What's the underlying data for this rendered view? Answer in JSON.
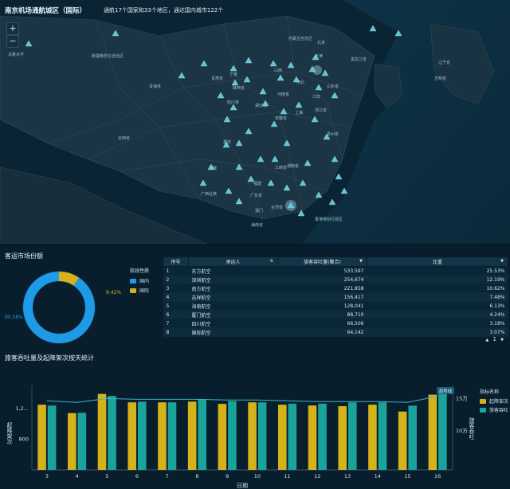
{
  "map": {
    "title": "南京机场通航城区（国际）",
    "summary": "通航17个国家和33个地区，通达国内城市122个",
    "zoom_in": "+",
    "zoom_out": "−",
    "cities": [
      "内蒙古自治区",
      "北京",
      "天津",
      "黑龙江省",
      "乌鲁木齐",
      "新疆维吾尔自治区",
      "甘肃省",
      "宁夏",
      "山西",
      "河北",
      "山东省",
      "青海省",
      "陕西省",
      "四川省",
      "湖北省",
      "河南省",
      "江苏",
      "安徽省",
      "上海",
      "浙江省",
      "湖南省",
      "江西省",
      "贵州省",
      "重庆",
      "西藏",
      "云南省",
      "广西壮族",
      "广东省",
      "福建",
      "台湾省",
      "海南省",
      "澳门",
      "香港特别行政区",
      "辽宁省",
      "吉林省"
    ]
  },
  "market": {
    "title": "客运市场份额",
    "legend_title": "航线性质",
    "legend": [
      {
        "name": "国内",
        "color": "#1e9be6"
      },
      {
        "name": "国际",
        "color": "#d4b21b"
      }
    ],
    "domestic_pct_label": "90.58%",
    "intl_pct_label": "9.42%",
    "domestic_fraction": 0.9058,
    "intl_fraction": 0.0942,
    "table": {
      "headers": [
        "序号",
        "承运人",
        "旅客吞吐量(聚合)",
        "比重"
      ],
      "sort_icon": "⇅",
      "rows": [
        {
          "idx": "1",
          "name": "东方航空",
          "pax": "533,597",
          "ratio": "25.53%"
        },
        {
          "idx": "2",
          "name": "深圳航空",
          "pax": "254,674",
          "ratio": "12.19%"
        },
        {
          "idx": "3",
          "name": "南方航空",
          "pax": "221,858",
          "ratio": "10.62%"
        },
        {
          "idx": "4",
          "name": "吉祥航空",
          "pax": "156,417",
          "ratio": "7.48%"
        },
        {
          "idx": "5",
          "name": "海南航空",
          "pax": "128,041",
          "ratio": "6.13%"
        },
        {
          "idx": "6",
          "name": "厦门航空",
          "pax": "88,710",
          "ratio": "4.24%"
        },
        {
          "idx": "7",
          "name": "四川航空",
          "pax": "66,506",
          "ratio": "3.18%"
        },
        {
          "idx": "8",
          "name": "国际航空",
          "pax": "64,142",
          "ratio": "3.07%"
        }
      ]
    },
    "pager": {
      "prev": "▲",
      "page": "1",
      "dropdown": "▼"
    }
  },
  "daily": {
    "title": "旅客吞吐量及起降架次按天统计",
    "legend_title": "指标名称",
    "badge": "趋势线",
    "colors": {
      "flights": "#d4b21b",
      "passengers": "#1aa39b",
      "trend": "#3ab5c8"
    },
    "chart_data": {
      "type": "bar",
      "categories": [
        "3",
        "4",
        "5",
        "6",
        "7",
        "8",
        "9",
        "10",
        "11",
        "12",
        "13",
        "14",
        "15",
        "16"
      ],
      "xlabel": "日期",
      "ylabel_left": "起降架次",
      "ylabel_right": "旅客吞吐",
      "left_ticks": [
        "800",
        "1,2..."
      ],
      "right_ticks": [
        "10万",
        "15万"
      ],
      "series": [
        {
          "name": "起降架次",
          "axis": "left",
          "values": [
            1250,
            1140,
            1390,
            1280,
            1280,
            1290,
            1260,
            1280,
            1250,
            1240,
            1230,
            1250,
            1160,
            1380
          ]
        },
        {
          "name": "旅客吞吐",
          "axis": "right",
          "values": [
            139000,
            128000,
            154000,
            145000,
            144000,
            149000,
            146000,
            144000,
            142000,
            142000,
            144000,
            144000,
            139000,
            161000
          ]
        }
      ],
      "trend": [
        1300,
        1280,
        1330,
        1320,
        1320,
        1320,
        1310,
        1310,
        1300,
        1290,
        1290,
        1290,
        1280,
        1360
      ]
    }
  }
}
